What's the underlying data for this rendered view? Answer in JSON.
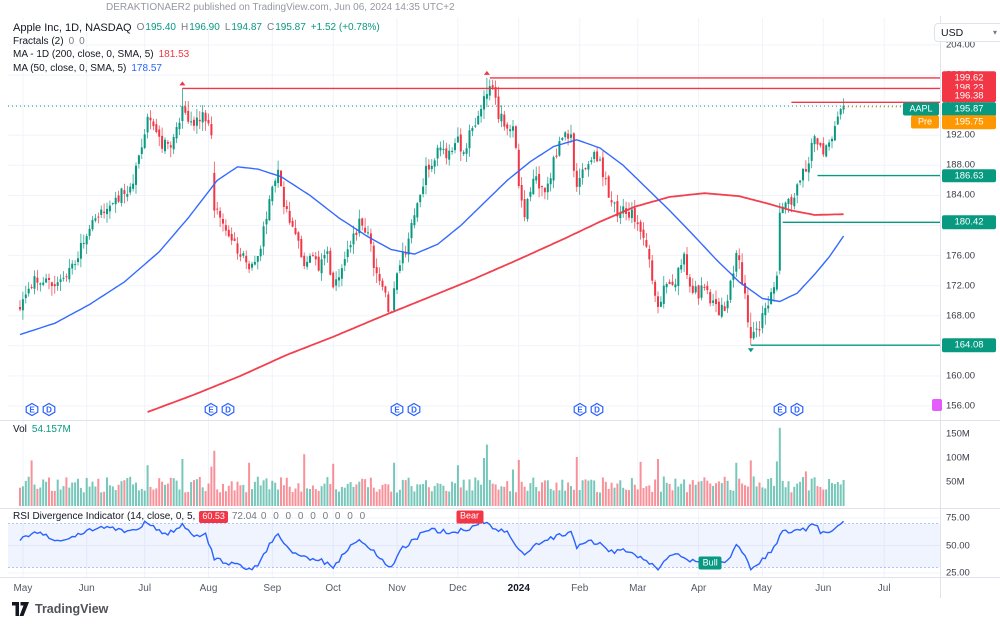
{
  "attribution": "DERAKTIONAER2 published on TradingView.com, Jun 06, 2024 14:35 UTC+2",
  "currency": {
    "label": "USD"
  },
  "icons": {
    "caret_down": "▾"
  },
  "logo": {
    "text": "TradingView"
  },
  "legend": {
    "symbol_line": "Apple Inc, 1D, NASDAQ",
    "ohlc": {
      "o_label": "O",
      "o": "195.40",
      "h_label": "H",
      "h": "196.90",
      "l_label": "L",
      "l": "194.87",
      "c_label": "C",
      "c": "195.87",
      "change": "+1.52 (+0.78%)"
    },
    "indicators": [
      {
        "name": "Fractals (2)",
        "values": [
          "0",
          "0"
        ],
        "value_color": "#787b86"
      },
      {
        "name": "MA - 1D (200, close, 0, SMA, 5)",
        "values": [
          "181.53"
        ],
        "value_color": "#f23645"
      },
      {
        "name": "MA (50, close, 0, SMA, 5)",
        "values": [
          "178.57"
        ],
        "value_color": "#2962ff"
      }
    ]
  },
  "volume_legend": {
    "label": "Vol",
    "value": "54.157M",
    "value_color": "#089981"
  },
  "rsi_legend": {
    "name": "RSI Divergence Indicator (14, close, 0, 5,",
    "chip": "60.53",
    "chip_bg": "#f23645",
    "value": "72.04",
    "zeros": "0 0 0 0 0 0 0 0 0"
  },
  "price_axis": {
    "ticks": [
      {
        "label": "204.00",
        "price": 204
      },
      {
        "label": "200.00",
        "price": 200
      },
      {
        "label": "196.00",
        "price": 196
      },
      {
        "label": "192.00",
        "price": 192
      },
      {
        "label": "188.00",
        "price": 188
      },
      {
        "label": "184.00",
        "price": 184
      },
      {
        "label": "180.00",
        "price": 180
      },
      {
        "label": "176.00",
        "price": 176
      },
      {
        "label": "172.00",
        "price": 172
      },
      {
        "label": "168.00",
        "price": 168
      },
      {
        "label": "164.00",
        "price": 164
      },
      {
        "label": "160.00",
        "price": 160
      },
      {
        "label": "156.00",
        "price": 156
      }
    ],
    "chips": [
      {
        "label": "199.62",
        "price": 199.62,
        "bg": "#f23645"
      },
      {
        "label": "198.23",
        "price": 198.23,
        "bg": "#f23645"
      },
      {
        "label": "196.38",
        "price": 196.38,
        "bg": "#f23645"
      },
      {
        "label": "195.87",
        "price": 195.87,
        "bg": "#089981"
      },
      {
        "label": "195.75",
        "price": 195.75,
        "bg": "#ff9800"
      },
      {
        "label": "186.63",
        "price": 186.63,
        "bg": "#089981"
      },
      {
        "label": "180.42",
        "price": 180.42,
        "bg": "#089981"
      },
      {
        "label": "164.08",
        "price": 164.08,
        "bg": "#089981"
      }
    ],
    "ticker_chips": [
      {
        "label": "AAPL",
        "bg": "#089981"
      },
      {
        "label": "Pre",
        "bg": "#ff9800"
      }
    ]
  },
  "volume_axis": {
    "ticks": [
      {
        "label": "150M",
        "value": 150
      },
      {
        "label": "100M",
        "value": 100
      },
      {
        "label": "50M",
        "value": 50
      }
    ]
  },
  "rsi_axis": {
    "ticks": [
      {
        "label": "75.00",
        "value": 75
      },
      {
        "label": "50.00",
        "value": 50
      },
      {
        "label": "25.00",
        "value": 25
      }
    ]
  },
  "time_axis": {
    "labels": [
      {
        "text": "May",
        "idx": 1
      },
      {
        "text": "Jun",
        "idx": 23
      },
      {
        "text": "Jul",
        "idx": 43
      },
      {
        "text": "Aug",
        "idx": 65
      },
      {
        "text": "Sep",
        "idx": 87
      },
      {
        "text": "Oct",
        "idx": 108
      },
      {
        "text": "Nov",
        "idx": 130
      },
      {
        "text": "Dec",
        "idx": 151
      },
      {
        "text": "2024",
        "idx": 172,
        "emph": true
      },
      {
        "text": "Feb",
        "idx": 193
      },
      {
        "text": "Mar",
        "idx": 213
      },
      {
        "text": "Apr",
        "idx": 234
      },
      {
        "text": "May",
        "idx": 256
      },
      {
        "text": "Jun",
        "idx": 277
      },
      {
        "text": "Jul",
        "idx": 298
      }
    ]
  },
  "events": [
    {
      "idx": 4,
      "badges": [
        "E",
        "D"
      ]
    },
    {
      "idx": 66,
      "badges": [
        "E",
        "D"
      ]
    },
    {
      "idx": 130,
      "badges": [
        "E",
        "D"
      ]
    },
    {
      "idx": 193,
      "badges": [
        "E",
        "D"
      ]
    },
    {
      "idx": 262,
      "badges": [
        "E",
        "D"
      ]
    }
  ],
  "markers": [
    {
      "text": "Bear",
      "idx": 155,
      "rsi_value": 76,
      "bg": "#f23645"
    },
    {
      "text": "Bull",
      "idx": 238,
      "rsi_value": 34,
      "bg": "#089981"
    }
  ],
  "chart_data": {
    "type": "candlestick",
    "title": "Apple Inc, 1D, NASDAQ",
    "symbol": "AAPL",
    "interval": "1D",
    "currency": "USD",
    "num_days": 285,
    "x_domain": "May 2023 - Jun 2024",
    "price_axis_range": [
      156,
      204
    ],
    "last_candle": {
      "open": 195.4,
      "high": 196.9,
      "low": 194.87,
      "close": 195.87,
      "change_text": "+1.52 (+0.78%)"
    },
    "last_price": 195.87,
    "premarket_price": 195.75,
    "up_color": "#089981",
    "down_color": "#f23645",
    "close_anchors": [
      [
        0,
        169.5
      ],
      [
        5,
        173.3
      ],
      [
        12,
        172.0
      ],
      [
        18,
        174.8
      ],
      [
        25,
        180.1
      ],
      [
        32,
        183.3
      ],
      [
        38,
        184.9
      ],
      [
        44,
        193.9
      ],
      [
        49,
        191.0
      ],
      [
        52,
        190.3
      ],
      [
        56,
        195.1
      ],
      [
        60,
        193.0
      ],
      [
        63,
        194.5
      ],
      [
        66,
        192.0
      ],
      [
        67,
        182.0
      ],
      [
        71,
        179.8
      ],
      [
        74,
        177.5
      ],
      [
        79,
        174.5
      ],
      [
        83,
        176.6
      ],
      [
        86,
        184.1
      ],
      [
        89,
        187.9
      ],
      [
        91,
        182.9
      ],
      [
        94,
        179.4
      ],
      [
        98,
        175.0
      ],
      [
        101,
        176.1
      ],
      [
        103,
        174.8
      ],
      [
        106,
        176.0
      ],
      [
        108,
        171.2
      ],
      [
        110,
        173.8
      ],
      [
        112,
        174.9
      ],
      [
        115,
        178.4
      ],
      [
        117,
        180.7
      ],
      [
        120,
        178.9
      ],
      [
        123,
        172.9
      ],
      [
        126,
        170.4
      ],
      [
        128,
        168.2
      ],
      [
        130,
        173.9
      ],
      [
        133,
        176.6
      ],
      [
        136,
        181.8
      ],
      [
        140,
        187.4
      ],
      [
        144,
        189.7
      ],
      [
        148,
        189.8
      ],
      [
        151,
        191.2
      ],
      [
        153,
        189.4
      ],
      [
        155,
        192.3
      ],
      [
        158,
        194.7
      ],
      [
        160,
        198.0
      ],
      [
        163,
        197.6
      ],
      [
        165,
        194.8
      ],
      [
        168,
        193.1
      ],
      [
        170,
        193.6
      ],
      [
        172,
        185.6
      ],
      [
        174,
        181.9
      ],
      [
        176,
        185.1
      ],
      [
        178,
        186.2
      ],
      [
        181,
        183.6
      ],
      [
        184,
        188.6
      ],
      [
        187,
        191.6
      ],
      [
        190,
        191.7
      ],
      [
        192,
        184.4
      ],
      [
        194,
        186.9
      ],
      [
        197,
        189.3
      ],
      [
        200,
        188.9
      ],
      [
        203,
        184.0
      ],
      [
        206,
        181.6
      ],
      [
        209,
        182.3
      ],
      [
        212,
        180.8
      ],
      [
        214,
        179.7
      ],
      [
        217,
        175.1
      ],
      [
        220,
        169.1
      ],
      [
        223,
        173.0
      ],
      [
        226,
        172.6
      ],
      [
        229,
        176.1
      ],
      [
        231,
        171.4
      ],
      [
        234,
        170.9
      ],
      [
        236,
        171.5
      ],
      [
        239,
        169.7
      ],
      [
        241,
        168.8
      ],
      [
        244,
        169.6
      ],
      [
        247,
        176.6
      ],
      [
        249,
        172.7
      ],
      [
        252,
        165.0
      ],
      [
        255,
        166.9
      ],
      [
        257,
        169.3
      ],
      [
        259,
        170.3
      ],
      [
        261,
        173.0
      ],
      [
        262,
        181.7
      ],
      [
        264,
        183.4
      ],
      [
        266,
        182.4
      ],
      [
        268,
        186.3
      ],
      [
        271,
        187.4
      ],
      [
        274,
        192.4
      ],
      [
        276,
        189.9
      ],
      [
        278,
        190.3
      ],
      [
        280,
        191.3
      ],
      [
        282,
        194.4
      ],
      [
        284,
        195.9
      ]
    ],
    "special_candles": {
      "56": {
        "h": 198.23
      },
      "66": {
        "o": 193.5,
        "h": 194.5,
        "l": 191.5,
        "c": 192.0
      },
      "67": {
        "o": 187.0,
        "h": 188.5,
        "l": 181.0,
        "c": 182.0
      },
      "161": {
        "h": 199.62
      },
      "252": {
        "o": 166.5,
        "l": 164.08,
        "c": 165.0
      },
      "262": {
        "o": 174.0,
        "h": 183.0,
        "l": 173.5,
        "c": 181.7
      },
      "284": {
        "o": 195.4,
        "h": 196.9,
        "l": 194.87,
        "c": 195.87
      }
    },
    "sma50": {
      "period": 50,
      "last": 178.57,
      "color": "#2962ff",
      "anchors": [
        [
          0,
          165.5
        ],
        [
          12,
          167.0
        ],
        [
          24,
          169.5
        ],
        [
          36,
          172.5
        ],
        [
          48,
          176.5
        ],
        [
          58,
          181.0
        ],
        [
          68,
          186.0
        ],
        [
          75,
          187.8
        ],
        [
          82,
          187.5
        ],
        [
          90,
          186.5
        ],
        [
          100,
          184.0
        ],
        [
          110,
          181.0
        ],
        [
          120,
          178.5
        ],
        [
          128,
          176.8
        ],
        [
          136,
          176.2
        ],
        [
          144,
          177.5
        ],
        [
          152,
          180.0
        ],
        [
          160,
          183.0
        ],
        [
          168,
          186.0
        ],
        [
          176,
          188.5
        ],
        [
          184,
          190.5
        ],
        [
          192,
          191.4
        ],
        [
          200,
          190.3
        ],
        [
          208,
          188.0
        ],
        [
          216,
          185.0
        ],
        [
          224,
          182.0
        ],
        [
          232,
          178.8
        ],
        [
          240,
          175.5
        ],
        [
          248,
          172.5
        ],
        [
          256,
          170.3
        ],
        [
          262,
          169.9
        ],
        [
          268,
          171.0
        ],
        [
          274,
          173.5
        ],
        [
          279,
          175.8
        ],
        [
          284,
          178.6
        ]
      ]
    },
    "sma200": {
      "period": 200,
      "last": 181.53,
      "color": "#f23645",
      "anchors": [
        [
          44,
          155.2
        ],
        [
          60,
          157.5
        ],
        [
          76,
          160.0
        ],
        [
          92,
          162.8
        ],
        [
          108,
          165.2
        ],
        [
          124,
          167.8
        ],
        [
          140,
          170.3
        ],
        [
          156,
          172.8
        ],
        [
          172,
          175.5
        ],
        [
          188,
          178.3
        ],
        [
          200,
          180.5
        ],
        [
          212,
          182.5
        ],
        [
          224,
          183.8
        ],
        [
          236,
          184.3
        ],
        [
          248,
          183.9
        ],
        [
          258,
          182.9
        ],
        [
          266,
          182.0
        ],
        [
          274,
          181.4
        ],
        [
          284,
          181.5
        ]
      ]
    },
    "volume": {
      "last_label": "54.157M",
      "axis_max": 150,
      "base_range": [
        28,
        62
      ],
      "spikes": {
        "4": 95,
        "44": 85,
        "56": 98,
        "66": 82,
        "67": 115,
        "79": 90,
        "98": 108,
        "108": 88,
        "129": 90,
        "151": 85,
        "160": 100,
        "161": 128,
        "170": 76,
        "172": 96,
        "192": 102,
        "214": 92,
        "220": 98,
        "247": 90,
        "252": 95,
        "261": 93,
        "262": 163,
        "271": 72,
        "280": 48,
        "281": 46,
        "282": 50,
        "283": 45,
        "284": 54.157
      }
    },
    "rsi": {
      "period": 14,
      "last": 72.04,
      "band": [
        30,
        70
      ],
      "color": "#2962ff",
      "anchors": [
        [
          0,
          55
        ],
        [
          6,
          62
        ],
        [
          12,
          55
        ],
        [
          18,
          58
        ],
        [
          25,
          65
        ],
        [
          32,
          66
        ],
        [
          38,
          62
        ],
        [
          44,
          72
        ],
        [
          50,
          60
        ],
        [
          56,
          68
        ],
        [
          60,
          58
        ],
        [
          64,
          60
        ],
        [
          67,
          38
        ],
        [
          71,
          35
        ],
        [
          75,
          32
        ],
        [
          79,
          28
        ],
        [
          83,
          35
        ],
        [
          86,
          52
        ],
        [
          89,
          60
        ],
        [
          92,
          48
        ],
        [
          96,
          40
        ],
        [
          100,
          38
        ],
        [
          104,
          36
        ],
        [
          108,
          30
        ],
        [
          112,
          44
        ],
        [
          117,
          56
        ],
        [
          120,
          50
        ],
        [
          124,
          38
        ],
        [
          128,
          30
        ],
        [
          132,
          48
        ],
        [
          136,
          55
        ],
        [
          140,
          65
        ],
        [
          145,
          63
        ],
        [
          150,
          62
        ],
        [
          155,
          66
        ],
        [
          160,
          72
        ],
        [
          164,
          65
        ],
        [
          168,
          62
        ],
        [
          172,
          48
        ],
        [
          174,
          42
        ],
        [
          178,
          52
        ],
        [
          182,
          55
        ],
        [
          186,
          60
        ],
        [
          190,
          62
        ],
        [
          192,
          48
        ],
        [
          196,
          54
        ],
        [
          200,
          52
        ],
        [
          204,
          44
        ],
        [
          208,
          46
        ],
        [
          212,
          42
        ],
        [
          216,
          36
        ],
        [
          220,
          28
        ],
        [
          224,
          42
        ],
        [
          228,
          40
        ],
        [
          231,
          36
        ],
        [
          234,
          37
        ],
        [
          237,
          38
        ],
        [
          240,
          33
        ],
        [
          244,
          36
        ],
        [
          247,
          52
        ],
        [
          250,
          42
        ],
        [
          252,
          28
        ],
        [
          255,
          35
        ],
        [
          258,
          42
        ],
        [
          261,
          50
        ],
        [
          263,
          65
        ],
        [
          266,
          60
        ],
        [
          268,
          66
        ],
        [
          271,
          65
        ],
        [
          274,
          70
        ],
        [
          276,
          62
        ],
        [
          278,
          60
        ],
        [
          280,
          63
        ],
        [
          282,
          68
        ],
        [
          284,
          72
        ]
      ]
    },
    "levels": {
      "resistance": [
        {
          "price": 199.62,
          "start_idx": 162
        },
        {
          "price": 198.23,
          "start_idx": 56
        },
        {
          "price": 196.38,
          "start_idx": 266
        }
      ],
      "support": [
        {
          "price": 186.63,
          "start_idx": 275
        },
        {
          "price": 180.42,
          "start_idx": 263
        },
        {
          "price": 164.08,
          "start_idx": 252
        }
      ]
    },
    "fractals": {
      "up": [
        56,
        161
      ],
      "down": [
        252
      ]
    }
  }
}
